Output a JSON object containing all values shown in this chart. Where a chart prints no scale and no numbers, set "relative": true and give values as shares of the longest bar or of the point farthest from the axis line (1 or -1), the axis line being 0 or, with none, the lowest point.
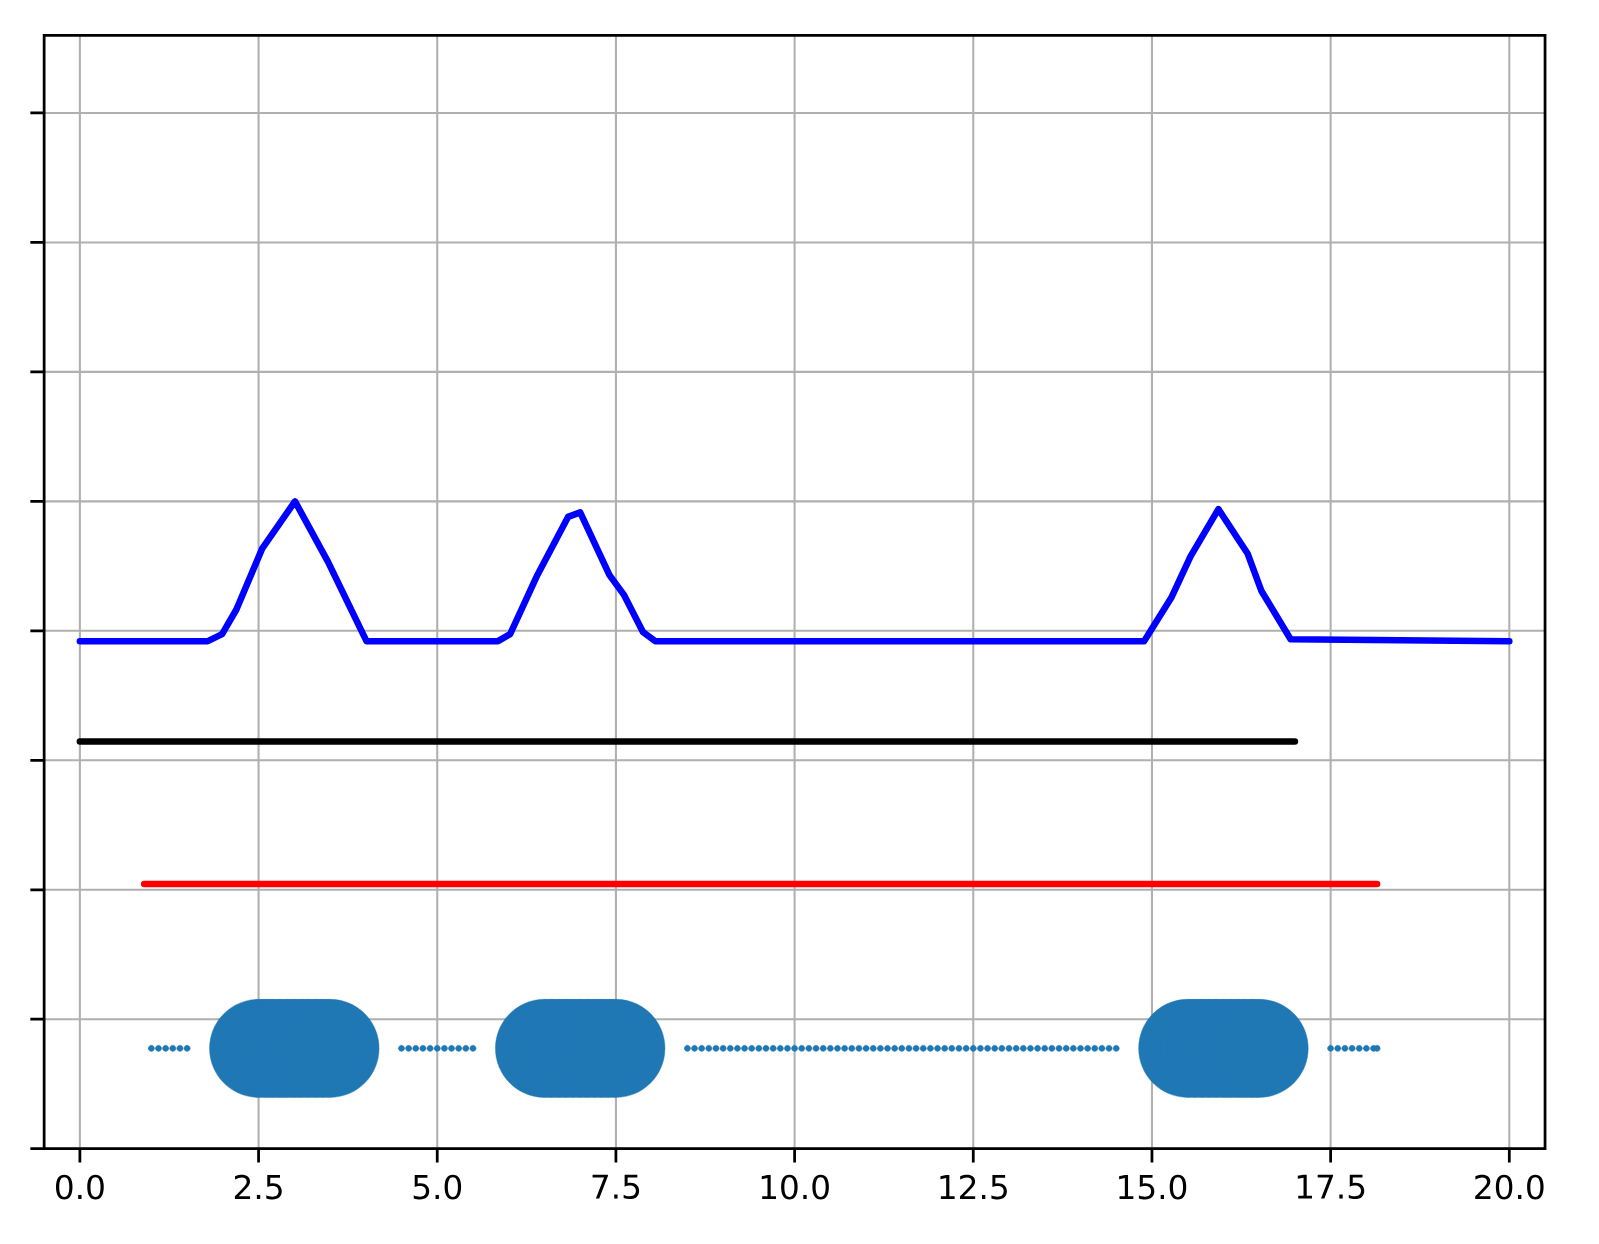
{
  "chart_data": {
    "type": "line",
    "relative": true,
    "grid": true,
    "tick_labels": "x",
    "marker": "none",
    "xlim": [
      -0.5,
      20.5
    ],
    "xticks": [
      {
        "value": 0,
        "label": "0.0"
      },
      {
        "value": 2.5,
        "label": "2.5"
      },
      {
        "value": 5,
        "label": "5.0"
      },
      {
        "value": 7.5,
        "label": "7.5"
      },
      {
        "value": 10,
        "label": "10.0"
      },
      {
        "value": 12.5,
        "label": "12.5"
      },
      {
        "value": 15,
        "label": "15.0"
      },
      {
        "value": 17.5,
        "label": "17.5"
      },
      {
        "value": 20,
        "label": "20.0"
      }
    ],
    "series": [
      {
        "color": "#0000ff",
        "x": [
          0.0,
          1.79,
          1.99,
          2.19,
          2.55,
          3.01,
          3.47,
          4.01,
          5.85,
          6.02,
          6.4,
          6.83,
          7.0,
          7.41,
          7.61,
          7.88,
          8.05,
          14.89,
          15.27,
          15.54,
          15.93,
          16.34,
          16.53,
          16.94,
          20.0
        ],
        "values": [
          0.784,
          0.784,
          0.795,
          0.833,
          0.927,
          1.0,
          0.907,
          0.784,
          0.784,
          0.795,
          0.886,
          0.976,
          0.983,
          0.886,
          0.856,
          0.798,
          0.784,
          0.784,
          0.851,
          0.915,
          0.988,
          0.919,
          0.862,
          0.787,
          0.784
        ]
      },
      {
        "color": "#000000",
        "x": [
          0.0,
          17.0
        ],
        "values": [
          0.629,
          0.629
        ]
      },
      {
        "color": "#ff0000",
        "x": [
          0.9,
          18.15
        ],
        "values": [
          0.409,
          0.409
        ]
      },
      {
        "type": "bubble",
        "color": "#1f77b4",
        "x": [
          1.0,
          1.1,
          1.2,
          1.3,
          1.4,
          1.5,
          2.5,
          2.6,
          2.7,
          2.8,
          2.9,
          3.0,
          3.1,
          3.2,
          3.3,
          3.4,
          3.5,
          4.5,
          4.6,
          4.7,
          4.8,
          4.9,
          5.0,
          5.1,
          5.2,
          5.3,
          5.4,
          5.5,
          6.5,
          6.6,
          6.7,
          6.8,
          6.9,
          7.0,
          7.1,
          7.2,
          7.3,
          7.4,
          7.5,
          8.5,
          8.6,
          8.7,
          8.8,
          8.9,
          9.0,
          9.1,
          9.2,
          9.3,
          9.4,
          9.5,
          9.6,
          9.7,
          9.8,
          9.9,
          10.0,
          10.1,
          10.2,
          10.3,
          10.4,
          10.5,
          10.6,
          10.7,
          10.8,
          10.9,
          11.0,
          11.1,
          11.2,
          11.3,
          11.4,
          11.5,
          11.6,
          11.7,
          11.8,
          11.9,
          12.0,
          12.1,
          12.2,
          12.3,
          12.4,
          12.5,
          12.6,
          12.7,
          12.8,
          12.9,
          13.0,
          13.1,
          13.2,
          13.3,
          13.4,
          13.5,
          13.6,
          13.7,
          13.8,
          13.9,
          14.0,
          14.1,
          14.2,
          14.3,
          14.4,
          14.5,
          15.5,
          15.6,
          15.7,
          15.8,
          15.9,
          16.0,
          16.1,
          16.2,
          16.3,
          16.4,
          16.5,
          17.5,
          17.6,
          17.7,
          17.8,
          17.9,
          18.0,
          18.1,
          18.15
        ],
        "values": [
          0.155,
          0.155,
          0.155,
          0.155,
          0.155,
          0.155,
          0.155,
          0.155,
          0.155,
          0.155,
          0.155,
          0.155,
          0.155,
          0.155,
          0.155,
          0.155,
          0.155,
          0.155,
          0.155,
          0.155,
          0.155,
          0.155,
          0.155,
          0.155,
          0.155,
          0.155,
          0.155,
          0.155,
          0.155,
          0.155,
          0.155,
          0.155,
          0.155,
          0.155,
          0.155,
          0.155,
          0.155,
          0.155,
          0.155,
          0.155,
          0.155,
          0.155,
          0.155,
          0.155,
          0.155,
          0.155,
          0.155,
          0.155,
          0.155,
          0.155,
          0.155,
          0.155,
          0.155,
          0.155,
          0.155,
          0.155,
          0.155,
          0.155,
          0.155,
          0.155,
          0.155,
          0.155,
          0.155,
          0.155,
          0.155,
          0.155,
          0.155,
          0.155,
          0.155,
          0.155,
          0.155,
          0.155,
          0.155,
          0.155,
          0.155,
          0.155,
          0.155,
          0.155,
          0.155,
          0.155,
          0.155,
          0.155,
          0.155,
          0.155,
          0.155,
          0.155,
          0.155,
          0.155,
          0.155,
          0.155,
          0.155,
          0.155,
          0.155,
          0.155,
          0.155,
          0.155,
          0.155,
          0.155,
          0.155,
          0.155,
          0.155,
          0.155,
          0.155,
          0.155,
          0.155,
          0.155,
          0.155,
          0.155,
          0.155,
          0.155,
          0.155,
          0.155,
          0.155,
          0.155,
          0.155,
          0.155,
          0.155,
          0.155,
          0.155
        ],
        "sizes": [
          0.004,
          0.004,
          0.004,
          0.004,
          0.004,
          0.004,
          1,
          1,
          1,
          1,
          1,
          1,
          1,
          1,
          1,
          1,
          1,
          0.004,
          0.004,
          0.004,
          0.004,
          0.004,
          0.004,
          0.004,
          0.004,
          0.004,
          0.004,
          0.004,
          1,
          1,
          1,
          1,
          1,
          1,
          1,
          1,
          1,
          1,
          1,
          0.004,
          0.004,
          0.004,
          0.004,
          0.004,
          0.004,
          0.004,
          0.004,
          0.004,
          0.004,
          0.004,
          0.004,
          0.004,
          0.004,
          0.004,
          0.004,
          0.004,
          0.004,
          0.004,
          0.004,
          0.004,
          0.004,
          0.004,
          0.004,
          0.004,
          0.004,
          0.004,
          0.004,
          0.004,
          0.004,
          0.004,
          0.004,
          0.004,
          0.004,
          0.004,
          0.004,
          0.004,
          0.004,
          0.004,
          0.004,
          0.004,
          0.004,
          0.004,
          0.004,
          0.004,
          0.004,
          0.004,
          0.004,
          0.004,
          0.004,
          0.004,
          0.004,
          0.004,
          0.004,
          0.004,
          0.004,
          0.004,
          0.004,
          0.004,
          0.004,
          0.004,
          1,
          1,
          1,
          1,
          1,
          1,
          1,
          1,
          1,
          1,
          1,
          0.004,
          0.004,
          0.004,
          0.004,
          0.004,
          0.004,
          0.004,
          0.004
        ]
      }
    ]
  }
}
